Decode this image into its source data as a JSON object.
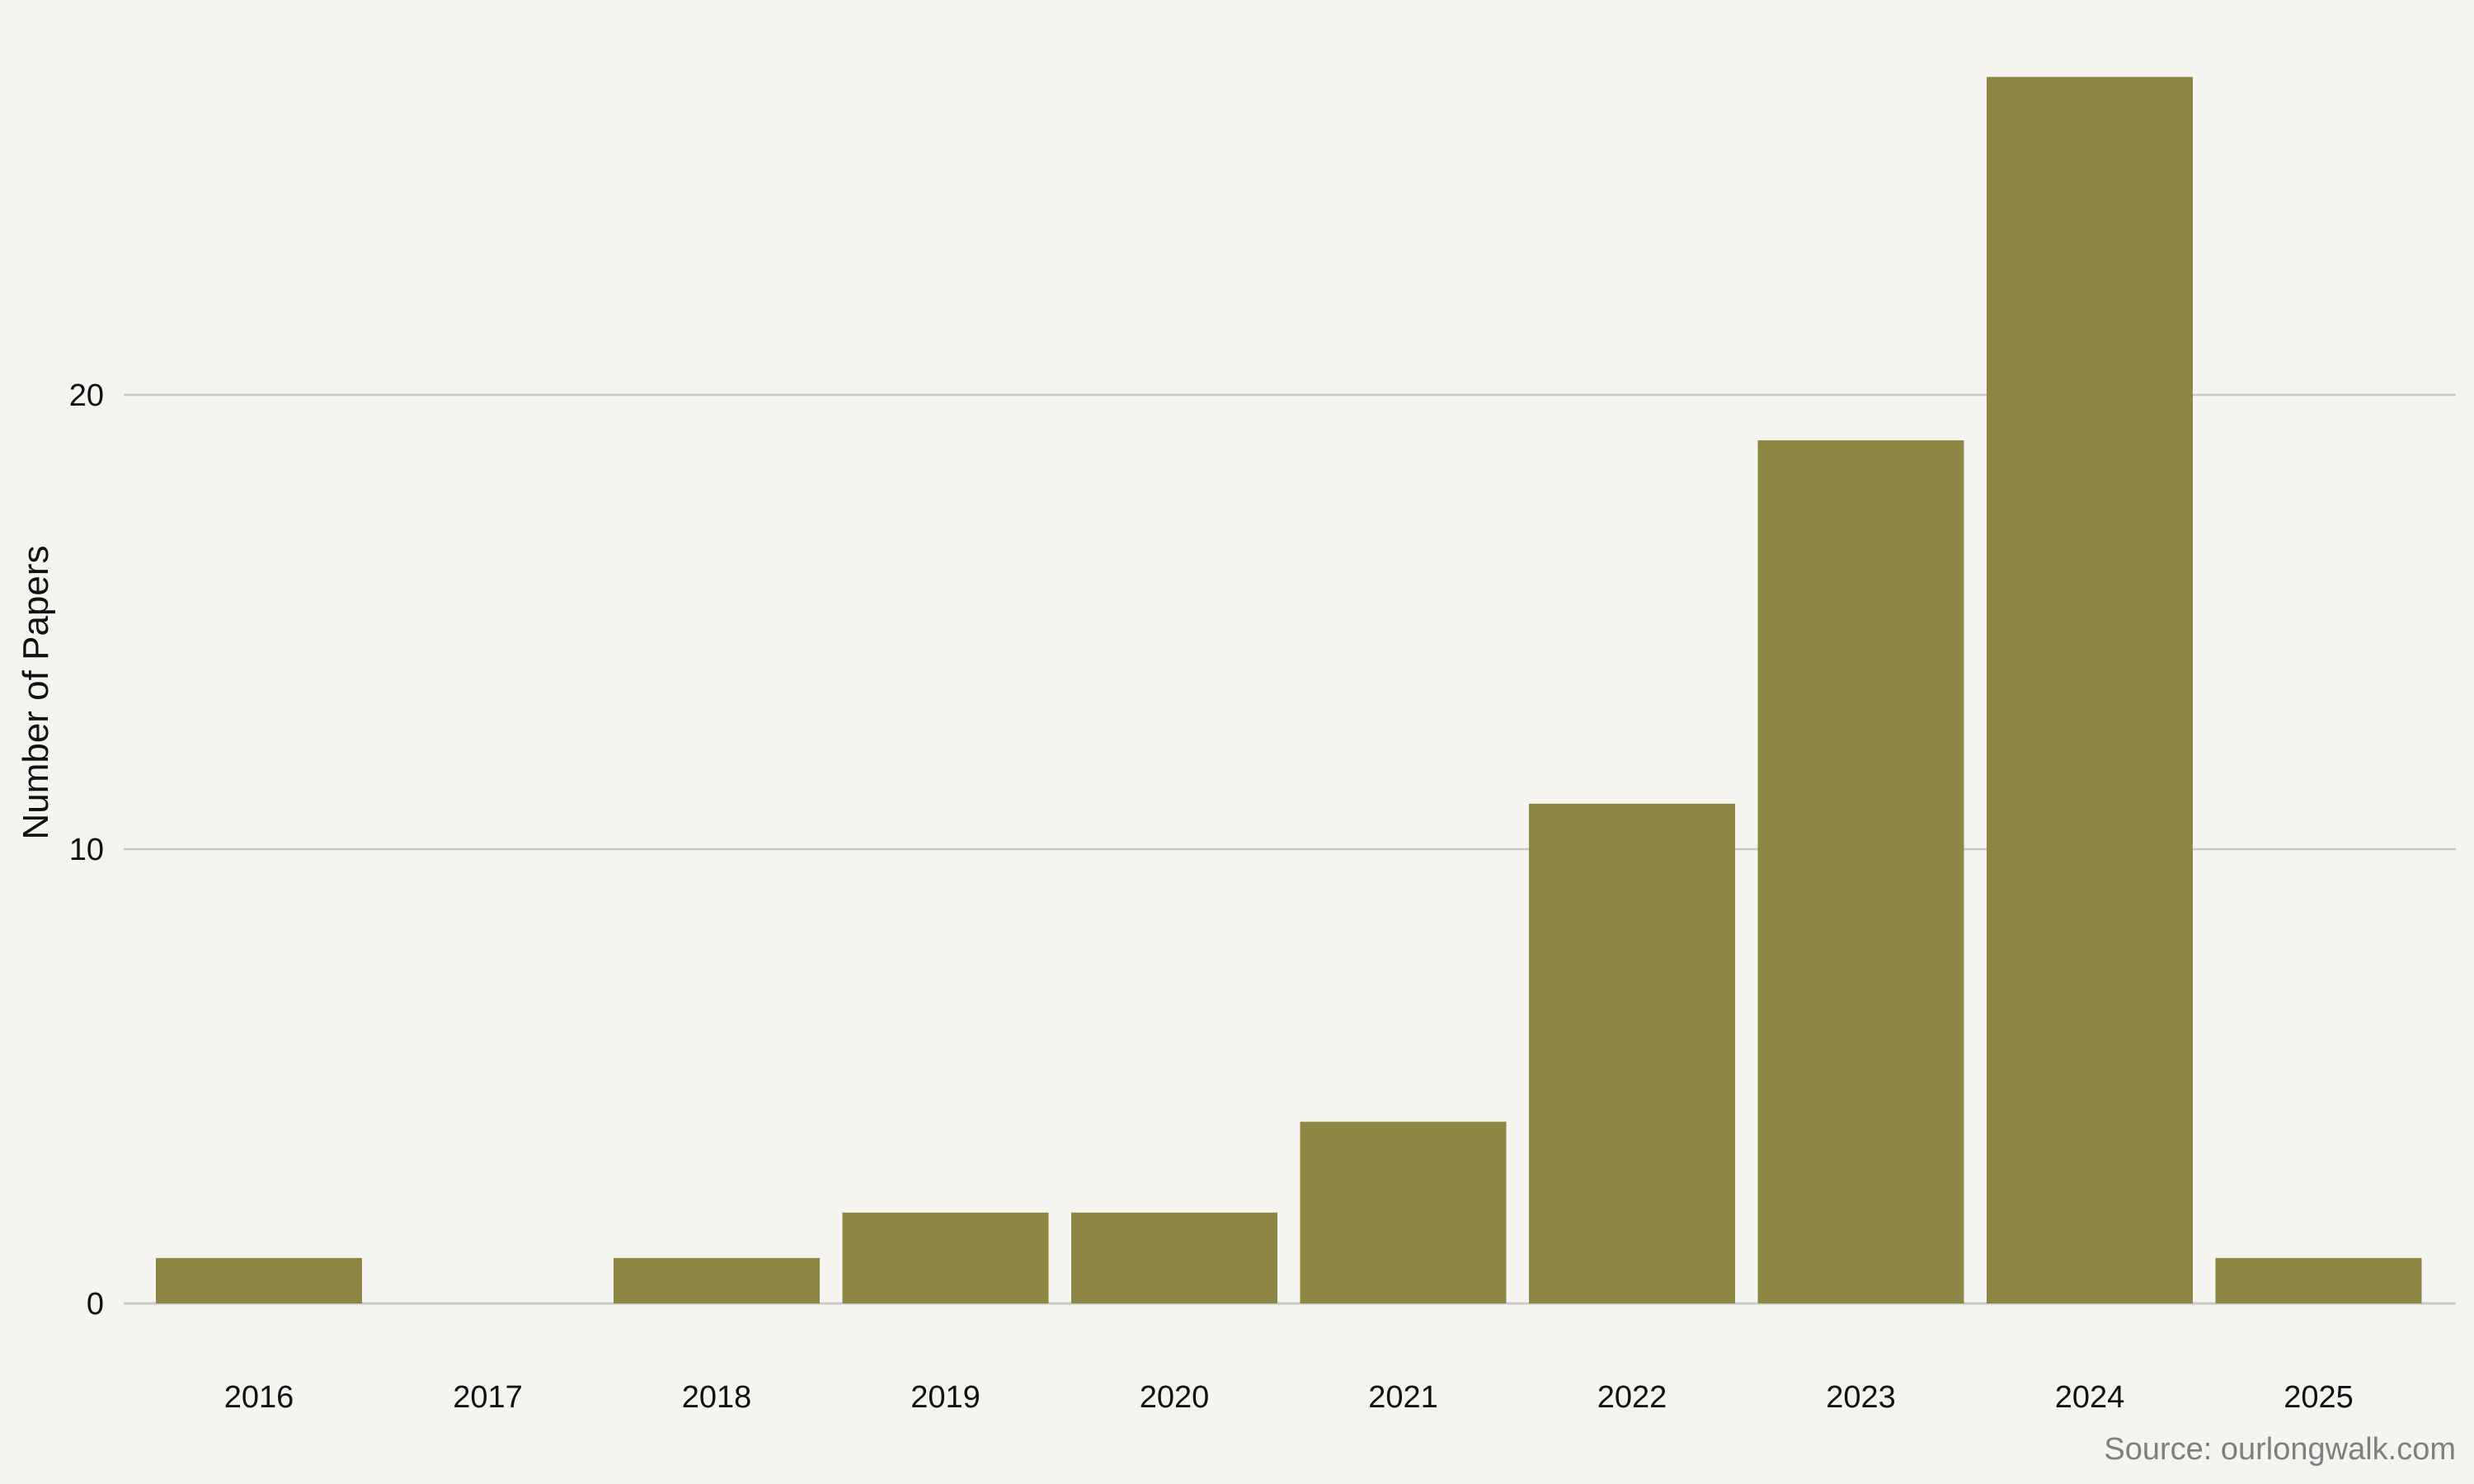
{
  "chart_data": {
    "type": "bar",
    "title": "",
    "xlabel": "",
    "ylabel": "Number of Papers",
    "categories": [
      "2016",
      "2017",
      "2018",
      "2019",
      "2020",
      "2021",
      "2022",
      "2023",
      "2024",
      "2025"
    ],
    "values": [
      1,
      0,
      1,
      2,
      2,
      4,
      11,
      19,
      27,
      1
    ],
    "ylim": [
      0,
      27
    ],
    "yticks": [
      0,
      10,
      20
    ],
    "grid": true,
    "legend": "none",
    "bar_color": "#8d8744",
    "grid_color": "#c8c8c6",
    "background": "#f5f4f0",
    "source": "Source: ourlongwalk.com"
  }
}
